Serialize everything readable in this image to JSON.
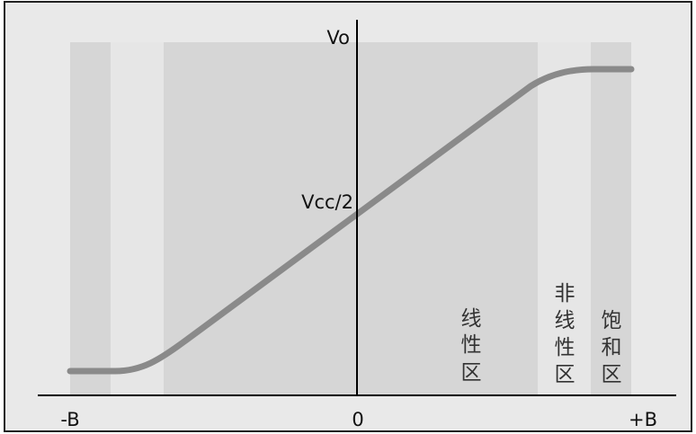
{
  "diagram": {
    "y_axis_label": "Vo",
    "mid_label": "Vcc/2",
    "x_ticks": {
      "left": "-B",
      "center": "0",
      "right": "+B"
    },
    "regions": {
      "linear": [
        "线",
        "性",
        "区"
      ],
      "nonlinear": [
        "非",
        "线",
        "性",
        "区"
      ],
      "saturation": [
        "饱",
        "和",
        "区"
      ]
    }
  },
  "colors": {
    "background": "#e9e9e9",
    "band_dark": "#d6d6d6",
    "band_light": "#e6e6e6",
    "curve": "#8a8a8a",
    "axis": "#000000"
  }
}
